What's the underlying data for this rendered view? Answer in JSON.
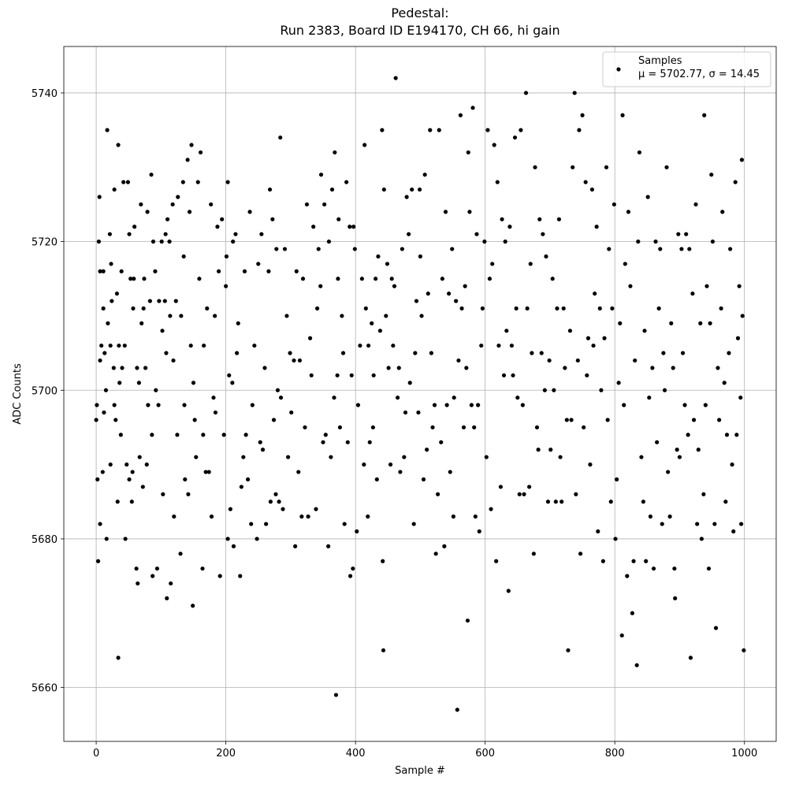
{
  "chart_data": {
    "type": "scatter",
    "title": "Pedestal:\nRun 2383, Board ID E194170, CH 66, hi gain",
    "x_label": "Sample #",
    "y_label": "ADC Counts",
    "xlim": [
      -49.95,
      1048.95
    ],
    "ylim": [
      5652.75,
      5746.25
    ],
    "xticks": [
      0,
      200,
      400,
      600,
      800,
      1000
    ],
    "yticks": [
      5660,
      5680,
      5700,
      5720,
      5740
    ],
    "grid": true,
    "legend": "upper right",
    "x": [
      0,
      1,
      2,
      3,
      4,
      5,
      6,
      6,
      6,
      8,
      10,
      11,
      11,
      12,
      13,
      15,
      16,
      17,
      18,
      21,
      22,
      22,
      23,
      24,
      27,
      28,
      28,
      30,
      32,
      33,
      34,
      34,
      35,
      36,
      38,
      39,
      40,
      42,
      44,
      45,
      47,
      49,
      51,
      51,
      53,
      55,
      56,
      57,
      58,
      59,
      62,
      63,
      64,
      66,
      67,
      69,
      70,
      72,
      73,
      74,
      76,
      78,
      79,
      80,
      83,
      85,
      86,
      87,
      88,
      91,
      92,
      94,
      96,
      97,
      101,
      102,
      103,
      106,
      107,
      108,
      109,
      110,
      113,
      114,
      115,
      118,
      119,
      120,
      123,
      125,
      126,
      130,
      131,
      134,
      135,
      136,
      137,
      141,
      142,
      144,
      146,
      147,
      149,
      150,
      152,
      154,
      157,
      159,
      161,
      164,
      165,
      166,
      169,
      171,
      174,
      177,
      178,
      181,
      183,
      184,
      187,
      189,
      191,
      194,
      197,
      200,
      201,
      203,
      203,
      205,
      207,
      210,
      211,
      212,
      215,
      217,
      219,
      222,
      224,
      227,
      229,
      231,
      234,
      237,
      239,
      241,
      244,
      248,
      250,
      253,
      255,
      257,
      260,
      262,
      266,
      268,
      269,
      272,
      274,
      277,
      278,
      280,
      282,
      284,
      285,
      288,
      291,
      294,
      296,
      299,
      301,
      305,
      307,
      309,
      312,
      314,
      317,
      319,
      322,
      325,
      327,
      330,
      332,
      335,
      339,
      341,
      343,
      346,
      347,
      350,
      352,
      354,
      358,
      359,
      362,
      364,
      367,
      368,
      370,
      372,
      373,
      374,
      376,
      379,
      381,
      383,
      386,
      388,
      391,
      392,
      394,
      396,
      397,
      399,
      402,
      404,
      407,
      410,
      413,
      414,
      416,
      419,
      420,
      422,
      425,
      427,
      428,
      431,
      433,
      435,
      438,
      441,
      442,
      443,
      444,
      447,
      449,
      451,
      454,
      456,
      458,
      460,
      462,
      465,
      467,
      469,
      472,
      475,
      477,
      479,
      482,
      484,
      487,
      490,
      492,
      494,
      497,
      499,
      500,
      502,
      505,
      507,
      510,
      512,
      515,
      517,
      519,
      522,
      524,
      527,
      529,
      532,
      534,
      537,
      539,
      541,
      544,
      546,
      549,
      551,
      552,
      555,
      557,
      559,
      562,
      564,
      567,
      569,
      571,
      573,
      574,
      576,
      579,
      581,
      583,
      585,
      587,
      589,
      591,
      594,
      596,
      599,
      602,
      604,
      607,
      609,
      611,
      614,
      617,
      619,
      621,
      624,
      626,
      629,
      631,
      633,
      636,
      638,
      641,
      643,
      646,
      648,
      650,
      653,
      655,
      658,
      660,
      663,
      665,
      668,
      670,
      672,
      675,
      677,
      680,
      682,
      684,
      687,
      689,
      692,
      694,
      697,
      699,
      701,
      704,
      706,
      709,
      711,
      714,
      716,
      718,
      721,
      723,
      726,
      728,
      731,
      733,
      735,
      738,
      740,
      743,
      745,
      747,
      750,
      752,
      755,
      757,
      759,
      762,
      765,
      767,
      769,
      772,
      774,
      777,
      779,
      782,
      784,
      787,
      789,
      791,
      794,
      796,
      799,
      801,
      803,
      806,
      808,
      811,
      812,
      814,
      816,
      819,
      821,
      824,
      827,
      829,
      831,
      834,
      836,
      838,
      841,
      844,
      846,
      848,
      851,
      853,
      855,
      858,
      860,
      863,
      865,
      868,
      870,
      873,
      875,
      877,
      880,
      882,
      885,
      887,
      890,
      892,
      893,
      896,
      898,
      900,
      903,
      905,
      908,
      910,
      913,
      915,
      917,
      920,
      922,
      925,
      927,
      929,
      932,
      934,
      937,
      938,
      940,
      942,
      945,
      947,
      949,
      951,
      954,
      956,
      959,
      961,
      964,
      966,
      969,
      971,
      973,
      976,
      978,
      981,
      983,
      986,
      988,
      990,
      992,
      994,
      995,
      996,
      997,
      999
    ],
    "series": [
      {
        "name": "Samples\nμ = 5702.77, σ = 14.45",
        "color": "#000000",
        "values": [
          5696,
          5698,
          5688,
          5677,
          5720,
          5726,
          5704,
          5716,
          5682,
          5706,
          5689,
          5716,
          5711,
          5697,
          5705,
          5700,
          5680,
          5735,
          5709,
          5721,
          5706,
          5690,
          5717,
          5712,
          5703,
          5698,
          5727,
          5696,
          5713,
          5685,
          5733,
          5664,
          5706,
          5701,
          5694,
          5716,
          5703,
          5728,
          5706,
          5680,
          5690,
          5728,
          5721,
          5688,
          5715,
          5685,
          5689,
          5711,
          5715,
          5722,
          5676,
          5703,
          5674,
          5701,
          5691,
          5725,
          5709,
          5687,
          5711,
          5715,
          5703,
          5690,
          5724,
          5698,
          5712,
          5729,
          5694,
          5675,
          5720,
          5716,
          5700,
          5676,
          5698,
          5712,
          5720,
          5708,
          5686,
          5712,
          5721,
          5705,
          5672,
          5723,
          5720,
          5710,
          5674,
          5725,
          5704,
          5683,
          5712,
          5694,
          5726,
          5678,
          5710,
          5728,
          5718,
          5698,
          5688,
          5731,
          5686,
          5724,
          5706,
          5733,
          5671,
          5701,
          5696,
          5691,
          5728,
          5715,
          5732,
          5676,
          5694,
          5706,
          5689,
          5711,
          5689,
          5725,
          5683,
          5699,
          5710,
          5697,
          5722,
          5716,
          5675,
          5723,
          5694,
          5714,
          5718,
          5680,
          5728,
          5702,
          5684,
          5701,
          5720,
          5679,
          5721,
          5705,
          5709,
          5675,
          5687,
          5691,
          5716,
          5694,
          5688,
          5724,
          5682,
          5698,
          5706,
          5680,
          5717,
          5693,
          5721,
          5692,
          5703,
          5682,
          5716,
          5727,
          5685,
          5723,
          5696,
          5686,
          5719,
          5700,
          5685,
          5734,
          5699,
          5684,
          5719,
          5710,
          5691,
          5705,
          5697,
          5704,
          5679,
          5716,
          5689,
          5704,
          5683,
          5715,
          5695,
          5725,
          5683,
          5707,
          5702,
          5722,
          5684,
          5711,
          5719,
          5714,
          5729,
          5693,
          5725,
          5694,
          5679,
          5720,
          5691,
          5727,
          5699,
          5732,
          5659,
          5702,
          5715,
          5723,
          5695,
          5710,
          5705,
          5682,
          5728,
          5693,
          5722,
          5675,
          5702,
          5676,
          5722,
          5719,
          5681,
          5698,
          5706,
          5715,
          5690,
          5733,
          5711,
          5683,
          5706,
          5693,
          5709,
          5695,
          5702,
          5715,
          5688,
          5718,
          5708,
          5735,
          5677,
          5665,
          5727,
          5710,
          5717,
          5703,
          5690,
          5715,
          5706,
          5714,
          5742,
          5699,
          5703,
          5689,
          5719,
          5691,
          5697,
          5726,
          5721,
          5701,
          5727,
          5682,
          5705,
          5712,
          5697,
          5727,
          5718,
          5710,
          5688,
          5729,
          5692,
          5713,
          5735,
          5705,
          5695,
          5698,
          5678,
          5686,
          5735,
          5693,
          5715,
          5679,
          5724,
          5698,
          5713,
          5689,
          5719,
          5683,
          5699,
          5712,
          5657,
          5704,
          5737,
          5711,
          5695,
          5714,
          5703,
          5669,
          5732,
          5724,
          5698,
          5738,
          5695,
          5683,
          5721,
          5698,
          5681,
          5706,
          5711,
          5720,
          5691,
          5735,
          5715,
          5684,
          5717,
          5733,
          5677,
          5728,
          5706,
          5687,
          5723,
          5702,
          5720,
          5708,
          5673,
          5722,
          5706,
          5702,
          5734,
          5711,
          5699,
          5686,
          5735,
          5698,
          5686,
          5740,
          5711,
          5687,
          5717,
          5705,
          5678,
          5730,
          5695,
          5692,
          5723,
          5705,
          5721,
          5700,
          5718,
          5685,
          5704,
          5692,
          5715,
          5700,
          5685,
          5711,
          5723,
          5691,
          5685,
          5711,
          5703,
          5696,
          5665,
          5708,
          5696,
          5730,
          5740,
          5686,
          5704,
          5735,
          5678,
          5737,
          5695,
          5728,
          5702,
          5707,
          5690,
          5727,
          5706,
          5713,
          5722,
          5681,
          5711,
          5700,
          5677,
          5707,
          5730,
          5696,
          5719,
          5685,
          5711,
          5725,
          5680,
          5688,
          5701,
          5709,
          5667,
          5737,
          5698,
          5717,
          5675,
          5724,
          5714,
          5670,
          5677,
          5704,
          5663,
          5720,
          5732,
          5691,
          5685,
          5708,
          5677,
          5726,
          5699,
          5683,
          5703,
          5676,
          5720,
          5693,
          5711,
          5719,
          5682,
          5705,
          5700,
          5730,
          5689,
          5683,
          5709,
          5703,
          5676,
          5672,
          5692,
          5721,
          5691,
          5719,
          5705,
          5698,
          5721,
          5694,
          5719,
          5664,
          5713,
          5696,
          5725,
          5682,
          5692,
          5709,
          5680,
          5686,
          5737,
          5698,
          5714,
          5676,
          5709,
          5729,
          5720,
          5682,
          5668,
          5703,
          5696,
          5711,
          5724,
          5701,
          5685,
          5694,
          5705,
          5719,
          5690,
          5681,
          5728,
          5694,
          5707,
          5714,
          5699,
          5682,
          5731,
          5710,
          5665
        ]
      }
    ]
  }
}
